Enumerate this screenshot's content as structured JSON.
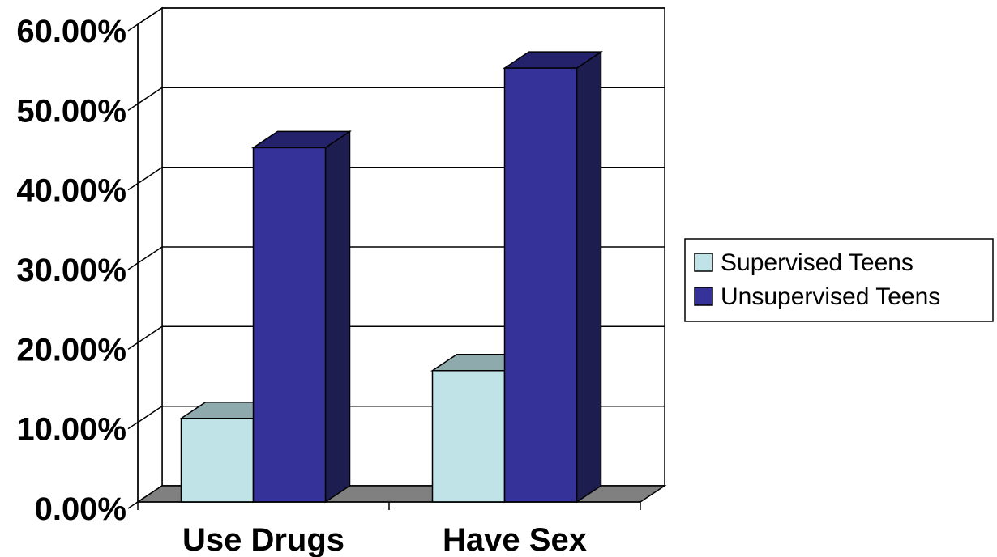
{
  "chart_data": {
    "type": "bar",
    "categories": [
      "Use Drugs",
      "Have Sex"
    ],
    "series": [
      {
        "name": "Supervised Teens",
        "values": [
          0.105,
          0.165
        ],
        "color": "#BFE3E6",
        "top_color": "#8FAAAD",
        "side_color": "#8FAAAD"
      },
      {
        "name": "Unsupervised Teens",
        "values": [
          0.445,
          0.545
        ],
        "color": "#35339A",
        "top_color": "#24226A",
        "side_color": "#1E1D50"
      }
    ],
    "ylim": [
      0,
      0.6
    ],
    "yticks": [
      0,
      0.1,
      0.2,
      0.3,
      0.4,
      0.5,
      0.6
    ],
    "ytick_labels": [
      "0.00%",
      "10.00%",
      "20.00%",
      "30.00%",
      "40.00%",
      "50.00%",
      "60.00%"
    ],
    "grid": true,
    "legend": "right",
    "three_d": true,
    "floor_color": "#808080",
    "title": "",
    "xlabel": "",
    "ylabel": ""
  }
}
